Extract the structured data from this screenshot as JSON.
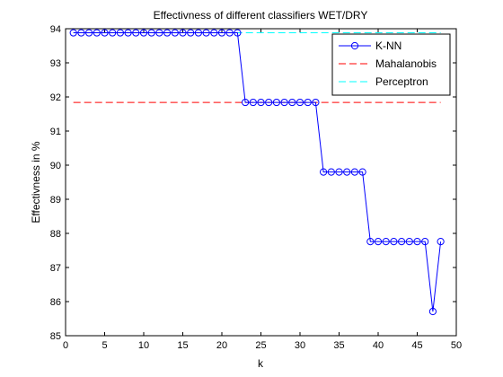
{
  "chart_data": {
    "type": "line",
    "title": "Effectivness of different classifiers WET/DRY",
    "xlabel": "k",
    "ylabel": "Effectivness in %",
    "xlim": [
      0,
      50
    ],
    "ylim": [
      85,
      94
    ],
    "xticks": [
      0,
      5,
      10,
      15,
      20,
      25,
      30,
      35,
      40,
      45,
      50
    ],
    "yticks": [
      85,
      86,
      87,
      88,
      89,
      90,
      91,
      92,
      93,
      94
    ],
    "grid": false,
    "legend_position": "top-right",
    "series": [
      {
        "name": "K-NN",
        "style": "line-circle",
        "color": "#0000ff",
        "x": [
          1,
          2,
          3,
          4,
          5,
          6,
          7,
          8,
          9,
          10,
          11,
          12,
          13,
          14,
          15,
          16,
          17,
          18,
          19,
          20,
          21,
          22,
          23,
          24,
          25,
          26,
          27,
          28,
          29,
          30,
          31,
          32,
          33,
          34,
          35,
          36,
          37,
          38,
          39,
          40,
          41,
          42,
          43,
          44,
          45,
          46,
          47,
          48
        ],
        "y": [
          93.88,
          93.88,
          93.88,
          93.88,
          93.88,
          93.88,
          93.88,
          93.88,
          93.88,
          93.88,
          93.88,
          93.88,
          93.88,
          93.88,
          93.88,
          93.88,
          93.88,
          93.88,
          93.88,
          93.88,
          93.88,
          93.88,
          91.84,
          91.84,
          91.84,
          91.84,
          91.84,
          91.84,
          91.84,
          91.84,
          91.84,
          91.84,
          89.8,
          89.8,
          89.8,
          89.8,
          89.8,
          89.8,
          87.76,
          87.76,
          87.76,
          87.76,
          87.76,
          87.76,
          87.76,
          87.76,
          85.71,
          87.76
        ]
      },
      {
        "name": "Mahalanobis",
        "style": "dashed",
        "color": "#ff0000",
        "x": [
          1,
          48
        ],
        "y": [
          91.84,
          91.84
        ]
      },
      {
        "name": "Perceptron",
        "style": "dashed",
        "color": "#00ffff",
        "x": [
          1,
          48
        ],
        "y": [
          93.88,
          93.88
        ]
      }
    ]
  }
}
